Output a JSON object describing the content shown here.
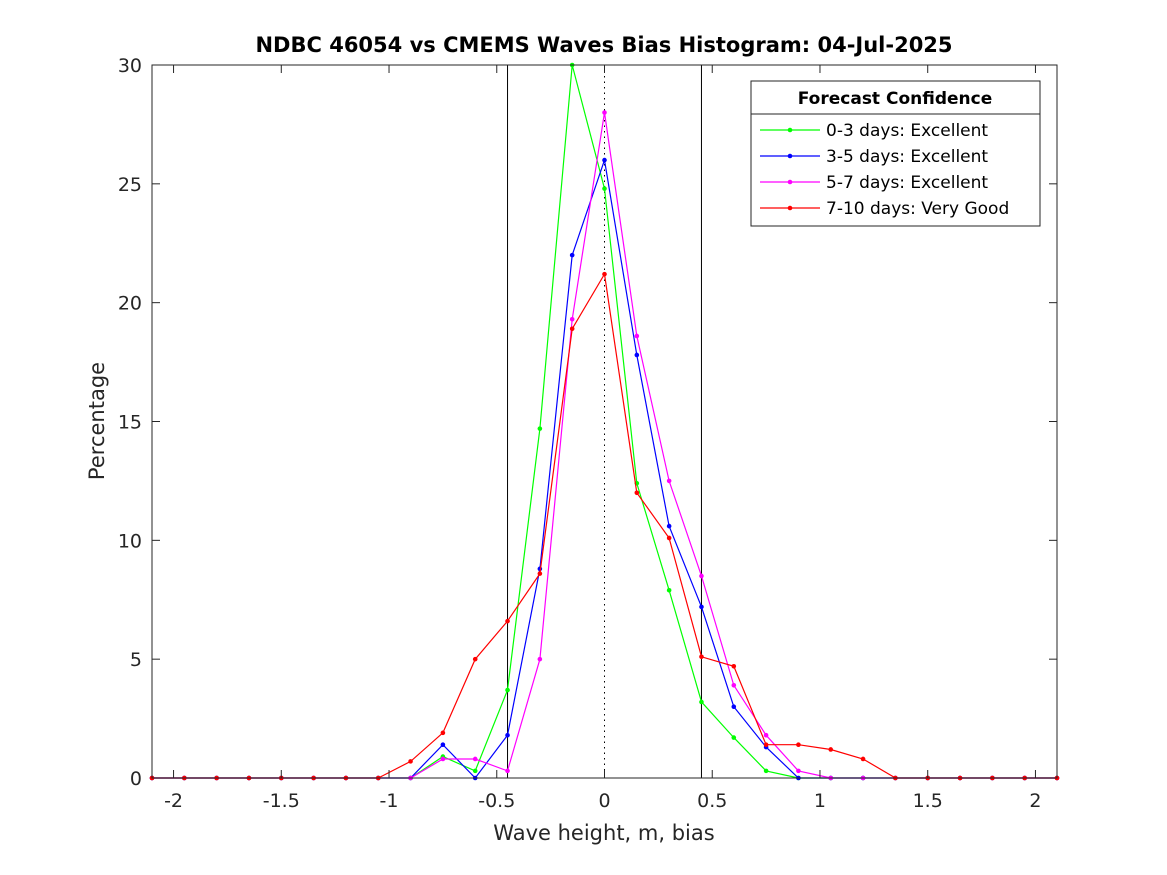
{
  "chart_data": {
    "type": "line",
    "title": "NDBC 46054 vs CMEMS Waves Bias Histogram: 04-Jul-2025",
    "xlabel": "Wave height, m, bias",
    "ylabel": "Percentage",
    "xlim": [
      -2.1,
      2.1
    ],
    "ylim": [
      0,
      30
    ],
    "xticks": [
      -2,
      -1.5,
      -1,
      -0.5,
      0,
      0.5,
      1,
      1.5,
      2
    ],
    "xtick_labels": [
      "-2",
      "-1.5",
      "-1",
      "-0.5",
      "0",
      "0.5",
      "1",
      "1.5",
      "2"
    ],
    "yticks": [
      0,
      5,
      10,
      15,
      20,
      25,
      30
    ],
    "ytick_labels": [
      "0",
      "5",
      "10",
      "15",
      "20",
      "25",
      "30"
    ],
    "grid": false,
    "legend_title": "Forecast Confidence",
    "legend_position": "top-right",
    "reference_lines": {
      "solid_x": [
        -0.45,
        0.45
      ],
      "dotted_x": [
        0
      ]
    },
    "x": [
      -2.1,
      -1.95,
      -1.8,
      -1.65,
      -1.5,
      -1.35,
      -1.2,
      -1.05,
      -0.9,
      -0.75,
      -0.6,
      -0.45,
      -0.3,
      -0.15,
      0,
      0.15,
      0.3,
      0.45,
      0.6,
      0.75,
      0.9,
      1.05,
      1.2,
      1.35,
      1.5,
      1.65,
      1.8,
      1.95,
      2.1
    ],
    "series": [
      {
        "name": "0-3 days: Excellent",
        "color": "#00ff00",
        "values": [
          0,
          0,
          0,
          0,
          0,
          0,
          0,
          0,
          0,
          0.9,
          0.3,
          3.7,
          14.7,
          30.0,
          24.8,
          12.4,
          7.9,
          3.2,
          1.7,
          0.3,
          0,
          0,
          0,
          0,
          0,
          0,
          0,
          0,
          0
        ]
      },
      {
        "name": "3-5 days: Excellent",
        "color": "#0000ff",
        "values": [
          0,
          0,
          0,
          0,
          0,
          0,
          0,
          0,
          0,
          1.4,
          0,
          1.8,
          8.8,
          22.0,
          26.0,
          17.8,
          10.6,
          7.2,
          3.0,
          1.3,
          0,
          0,
          0,
          0,
          0,
          0,
          0,
          0,
          0
        ]
      },
      {
        "name": "5-7 days: Excellent",
        "color": "#ff00ff",
        "values": [
          0,
          0,
          0,
          0,
          0,
          0,
          0,
          0,
          0,
          0.8,
          0.8,
          0.3,
          5.0,
          19.3,
          28.0,
          18.6,
          12.5,
          8.5,
          3.9,
          1.8,
          0.3,
          0,
          0,
          0,
          0,
          0,
          0,
          0,
          0
        ]
      },
      {
        "name": "7-10 days: Very Good",
        "color": "#ff0000",
        "values": [
          0,
          0,
          0,
          0,
          0,
          0,
          0,
          0,
          0.7,
          1.9,
          5.0,
          6.6,
          8.6,
          18.9,
          21.2,
          12.0,
          10.1,
          5.1,
          4.7,
          1.4,
          1.4,
          1.2,
          0.8,
          0,
          0,
          0,
          0,
          0,
          0
        ]
      }
    ]
  }
}
